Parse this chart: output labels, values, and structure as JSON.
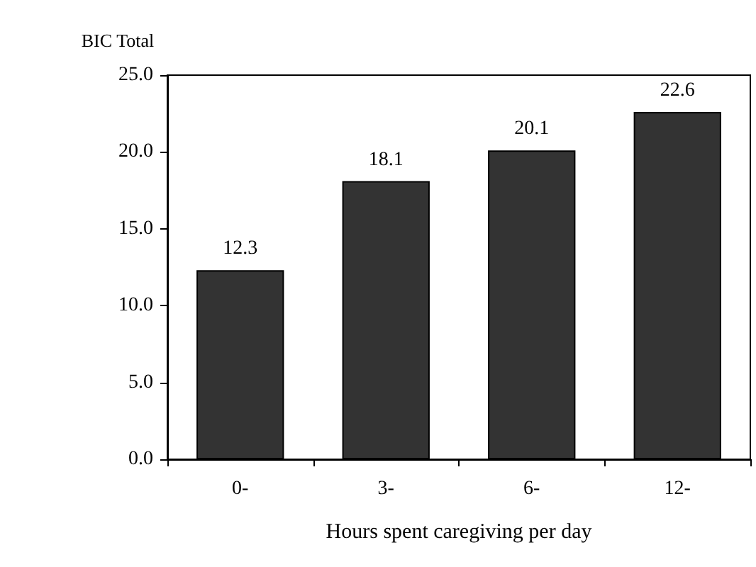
{
  "chart_data": {
    "type": "bar",
    "ylabel": "BIC Total",
    "xlabel": "Hours spent caregiving per day",
    "categories": [
      "0-",
      "3-",
      "6-",
      "12-"
    ],
    "values": [
      12.3,
      18.1,
      20.1,
      22.6
    ],
    "color": "#333333",
    "ylim": [
      0,
      25
    ],
    "yticks": [
      {
        "value": 0,
        "label": "0.0"
      },
      {
        "value": 5,
        "label": "5.0"
      },
      {
        "value": 10,
        "label": "10.0"
      },
      {
        "value": 15,
        "label": "15.0"
      },
      {
        "value": 20,
        "label": "20.0"
      },
      {
        "value": 25,
        "label": "25.0"
      }
    ],
    "data_labels": true
  }
}
